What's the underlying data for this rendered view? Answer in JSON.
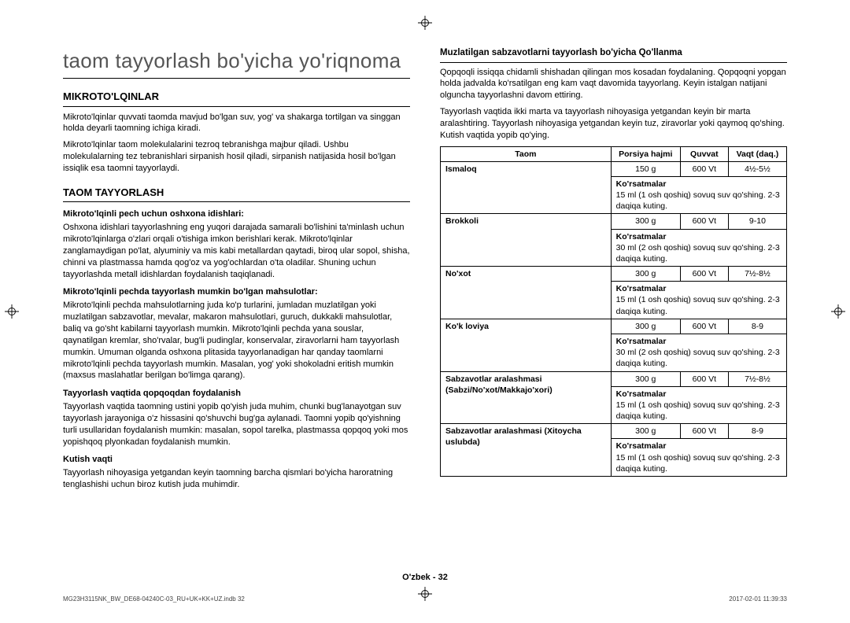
{
  "title": "taom tayyorlash bo'yicha yo'riqnoma",
  "left": {
    "h1": "MIKROTO'LQINLAR",
    "p1": "Mikroto'lqinlar quvvati taomda mavjud bo'lgan suv, yog' va shakarga tortilgan va singgan holda deyarli taomning ichiga kiradi.",
    "p2": "Mikroto'lqinlar taom molekulalarini tezroq tebranishga majbur qiladi. Ushbu molekulalarning tez tebranishlari sirpanish hosil qiladi, sirpanish natijasida hosil bo'lgan issiqlik esa taomni tayyorlaydi.",
    "h2": "TAOM TAYYORLASH",
    "s1_title": "Mikroto'lqinli pech uchun oshxona idishlari:",
    "s1_body": "Oshxona idishlari tayyorlashning eng yuqori darajada samarali bo'lishini ta'minlash uchun mikroto'lqinlarga o'zlari orqali o'tishiga imkon berishlari kerak. Mikroto'lqinlar zanglamaydigan po'lat, alyuminiy va mis kabi metallardan qaytadi, biroq ular sopol, shisha, chinni va plastmassa hamda qog'oz va yog'ochlardan o'ta oladilar. Shuning uchun tayyorlashda metall idishlardan foydalanish taqiqlanadi.",
    "s2_title": "Mikroto'lqinli pechda tayyorlash mumkin bo'lgan mahsulotlar:",
    "s2_body": "Mikroto'lqinli pechda mahsulotlarning juda ko'p turlarini, jumladan muzlatilgan yoki muzlatilgan sabzavotlar, mevalar, makaron mahsulotlari, guruch, dukkakli mahsulotlar, baliq va go'sht kabilarni tayyorlash mumkin. Mikroto'lqinli pechda yana souslar, qaynatilgan kremlar, sho'rvalar, bug'li pudinglar, konservalar, ziravorlarni ham tayyorlash mumkin. Umuman olganda oshxona plitasida tayyorlanadigan har qanday taomlarni mikroto'lqinli pechda tayyorlash mumkin. Masalan, yog' yoki shokoladni eritish mumkin (maxsus maslahatlar berilgan bo'limga qarang).",
    "s3_title": "Tayyorlash vaqtida qopqoqdan foydalanish",
    "s3_body": "Tayyorlash vaqtida taomning ustini yopib qo'yish juda muhim, chunki bug'lanayotgan suv tayyorlash jarayoniga o'z hissasini qo'shuvchi bug'ga aylanadi. Taomni yopib qo'yishning turli usullaridan foydalanish mumkin: masalan, sopol tarelka, plastmassa qopqoq yoki mos yopishqoq plyonkadan foydalanish mumkin.",
    "s4_title": "Kutish vaqti",
    "s4_body": "Tayyorlash nihoyasiga yetgandan keyin taomning barcha qismlari bo'yicha haroratning tenglashishi uchun biroz kutish juda muhimdir."
  },
  "right": {
    "title": "Muzlatilgan sabzavotlarni tayyorlash bo'yicha Qo'llanma",
    "p1": "Qopqoqli issiqqa chidamli shishadan qilingan mos kosadan foydalaning. Qopqoqni yopgan holda jadvalda ko'rsatilgan eng kam vaqt davomida tayyorlang. Keyin istalgan natijani olguncha tayyorlashni davom ettiring.",
    "p2": "Tayyorlash vaqtida ikki marta va tayyorlash nihoyasiga yetgandan keyin bir marta aralashtiring. Tayyorlash nihoyasiga yetgandan keyin tuz, ziravorlar yoki qaymoq qo'shing. Kutish vaqtida yopib qo'ying.",
    "headers": {
      "c1": "Taom",
      "c2": "Porsiya hajmi",
      "c3": "Quvvat",
      "c4": "Vaqt (daq.)"
    },
    "inst_label": "Ko'rsatmalar",
    "rows": [
      {
        "food": "Ismaloq",
        "portion": "150 g",
        "power": "600 Vt",
        "time": "4½-5½",
        "inst": "15 ml (1 osh qoshiq) sovuq suv qo'shing. 2-3 daqiqa kuting."
      },
      {
        "food": "Brokkoli",
        "portion": "300 g",
        "power": "600 Vt",
        "time": "9-10",
        "inst": "30 ml (2 osh qoshiq) sovuq suv qo'shing. 2-3 daqiqa kuting."
      },
      {
        "food": "No'xot",
        "portion": "300 g",
        "power": "600 Vt",
        "time": "7½-8½",
        "inst": "15 ml (1 osh qoshiq) sovuq suv qo'shing. 2-3 daqiqa kuting."
      },
      {
        "food": "Ko'k loviya",
        "portion": "300 g",
        "power": "600 Vt",
        "time": "8-9",
        "inst": "30 ml (2 osh qoshiq) sovuq suv qo'shing. 2-3 daqiqa kuting."
      },
      {
        "food": "Sabzavotlar aralashmasi (Sabzi/No'xot/Makkajo'xori)",
        "portion": "300 g",
        "power": "600 Vt",
        "time": "7½-8½",
        "inst": "15 ml (1 osh qoshiq) sovuq suv qo'shing. 2-3 daqiqa kuting."
      },
      {
        "food": "Sabzavotlar aralashmasi (Xitoycha uslubda)",
        "portion": "300 g",
        "power": "600 Vt",
        "time": "8-9",
        "inst": "15 ml (1 osh qoshiq) sovuq suv qo'shing. 2-3 daqiqa kuting."
      }
    ]
  },
  "footer": "O'zbek - 32",
  "footnote_left": "MG23H3115NK_BW_DE68-04240C-03_RU+UK+KK+UZ.indb   32",
  "footnote_right": "2017-02-01   11:39:33"
}
